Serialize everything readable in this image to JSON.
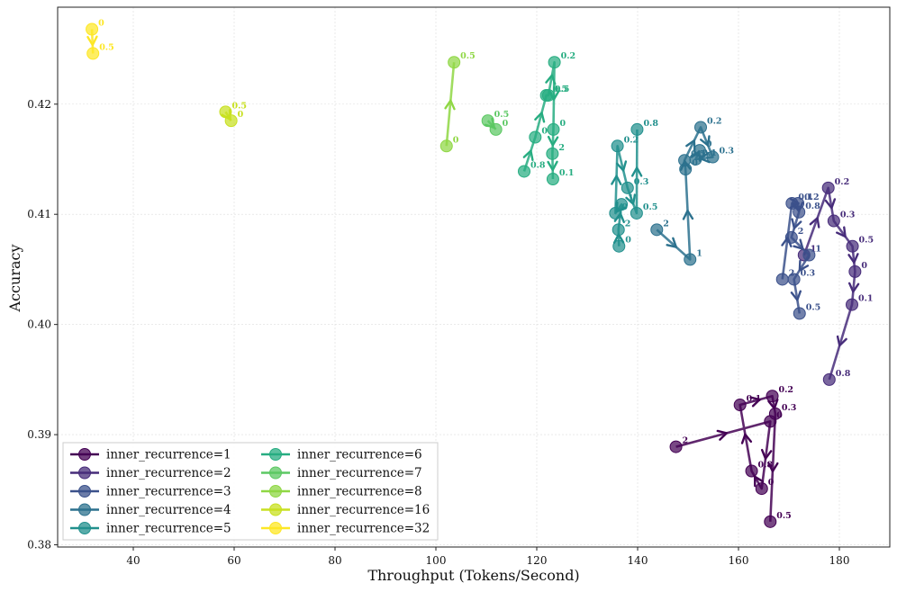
{
  "chart_data": {
    "type": "scatter",
    "title": "",
    "xlabel": "Throughput (Tokens/Second)",
    "ylabel": "Accuracy",
    "xlim": [
      25,
      190
    ],
    "ylim": [
      0.3798,
      0.4288
    ],
    "xticks": [
      40,
      60,
      80,
      100,
      120,
      140,
      160,
      180
    ],
    "yticks": [
      0.38,
      0.39,
      0.4,
      0.41,
      0.42
    ],
    "ytick_labels": [
      "0.38",
      "0.39",
      "0.40",
      "0.41",
      "0.42"
    ],
    "grid": true,
    "legend_position": "lower-left",
    "series": [
      {
        "name": "inner_recurrence=1",
        "color": "#440154",
        "points": [
          {
            "x": 147.6,
            "y": 0.3889,
            "label": "2"
          },
          {
            "x": 166.3,
            "y": 0.3912,
            "label": "0"
          },
          {
            "x": 164.6,
            "y": 0.3851,
            "label": "0"
          },
          {
            "x": 162.6,
            "y": 0.3867,
            "label": "0.8"
          },
          {
            "x": 160.3,
            "y": 0.3927,
            "label": "0.1"
          },
          {
            "x": 166.7,
            "y": 0.3935,
            "label": "0.2"
          },
          {
            "x": 167.3,
            "y": 0.3919,
            "label": "0.3"
          },
          {
            "x": 166.3,
            "y": 0.3821,
            "label": "0.5"
          }
        ]
      },
      {
        "name": "inner_recurrence=2",
        "color": "#472c7a",
        "points": [
          {
            "x": 173.0,
            "y": 0.4063,
            "label": "1"
          },
          {
            "x": 177.8,
            "y": 0.4124,
            "label": "0.2"
          },
          {
            "x": 178.9,
            "y": 0.4094,
            "label": "0.3"
          },
          {
            "x": 182.6,
            "y": 0.4071,
            "label": "0.5"
          },
          {
            "x": 183.1,
            "y": 0.4048,
            "label": "0"
          },
          {
            "x": 182.5,
            "y": 0.4018,
            "label": "0.1"
          },
          {
            "x": 178.0,
            "y": 0.395,
            "label": "0.8"
          }
        ]
      },
      {
        "name": "inner_recurrence=3",
        "color": "#3b518b",
        "points": [
          {
            "x": 168.7,
            "y": 0.4041,
            "label": "2"
          },
          {
            "x": 170.6,
            "y": 0.411,
            "label": "0.1"
          },
          {
            "x": 171.8,
            "y": 0.411,
            "label": "0.2"
          },
          {
            "x": 172.0,
            "y": 0.4102,
            "label": "0.8"
          },
          {
            "x": 170.5,
            "y": 0.4079,
            "label": "2"
          },
          {
            "x": 174.0,
            "y": 0.4063,
            "label": "1"
          },
          {
            "x": 171.0,
            "y": 0.4041,
            "label": "0.3"
          },
          {
            "x": 172.1,
            "y": 0.401,
            "label": "0.5"
          }
        ]
      },
      {
        "name": "inner_recurrence=4",
        "color": "#2c718e",
        "points": [
          {
            "x": 143.8,
            "y": 0.4086,
            "label": "2"
          },
          {
            "x": 150.4,
            "y": 0.4059,
            "label": "1"
          },
          {
            "x": 149.5,
            "y": 0.4141,
            "label": "0"
          },
          {
            "x": 149.3,
            "y": 0.4149,
            "label": "0.5"
          },
          {
            "x": 152.5,
            "y": 0.4179,
            "label": "0.2"
          },
          {
            "x": 154.9,
            "y": 0.4152,
            "label": "0.3"
          },
          {
            "x": 151.5,
            "y": 0.415,
            "label": "0.1"
          },
          {
            "x": 152.3,
            "y": 0.4158,
            "label": "0"
          }
        ]
      },
      {
        "name": "inner_recurrence=5",
        "color": "#21908d",
        "points": [
          {
            "x": 136.3,
            "y": 0.4071,
            "label": "0"
          },
          {
            "x": 136.2,
            "y": 0.4086,
            "label": "2"
          },
          {
            "x": 136.8,
            "y": 0.4109,
            "label": "1"
          },
          {
            "x": 135.6,
            "y": 0.4101,
            "label": "0"
          },
          {
            "x": 136.0,
            "y": 0.4162,
            "label": "0.2"
          },
          {
            "x": 138.0,
            "y": 0.4124,
            "label": "0.3"
          },
          {
            "x": 139.8,
            "y": 0.4101,
            "label": "0.5"
          },
          {
            "x": 139.9,
            "y": 0.4177,
            "label": "0.8"
          }
        ]
      },
      {
        "name": "inner_recurrence=6",
        "color": "#27ad81",
        "points": [
          {
            "x": 117.5,
            "y": 0.4139,
            "label": "0.8"
          },
          {
            "x": 119.7,
            "y": 0.417,
            "label": "0"
          },
          {
            "x": 121.9,
            "y": 0.4208,
            "label": "0.5"
          },
          {
            "x": 122.3,
            "y": 0.4208,
            "label": "0.5"
          },
          {
            "x": 123.5,
            "y": 0.4238,
            "label": "0.2"
          },
          {
            "x": 123.3,
            "y": 0.4177,
            "label": "0"
          },
          {
            "x": 123.1,
            "y": 0.4155,
            "label": "2"
          },
          {
            "x": 123.2,
            "y": 0.4132,
            "label": "0.1"
          }
        ]
      },
      {
        "name": "inner_recurrence=7",
        "color": "#5cc863",
        "points": [
          {
            "x": 110.3,
            "y": 0.4185,
            "label": "0.5"
          },
          {
            "x": 111.9,
            "y": 0.4177,
            "label": "0"
          }
        ]
      },
      {
        "name": "inner_recurrence=8",
        "color": "#8fd744",
        "points": [
          {
            "x": 102.1,
            "y": 0.4162,
            "label": "0"
          },
          {
            "x": 103.6,
            "y": 0.4238,
            "label": "0.5"
          }
        ]
      },
      {
        "name": "inner_recurrence=16",
        "color": "#c8e020",
        "points": [
          {
            "x": 58.3,
            "y": 0.4193,
            "label": "0.5"
          },
          {
            "x": 59.4,
            "y": 0.4185,
            "label": "0"
          }
        ]
      },
      {
        "name": "inner_recurrence=32",
        "color": "#fde725",
        "points": [
          {
            "x": 31.8,
            "y": 0.4268,
            "label": "0"
          },
          {
            "x": 32.0,
            "y": 0.4246,
            "label": "0.5"
          }
        ]
      }
    ]
  }
}
